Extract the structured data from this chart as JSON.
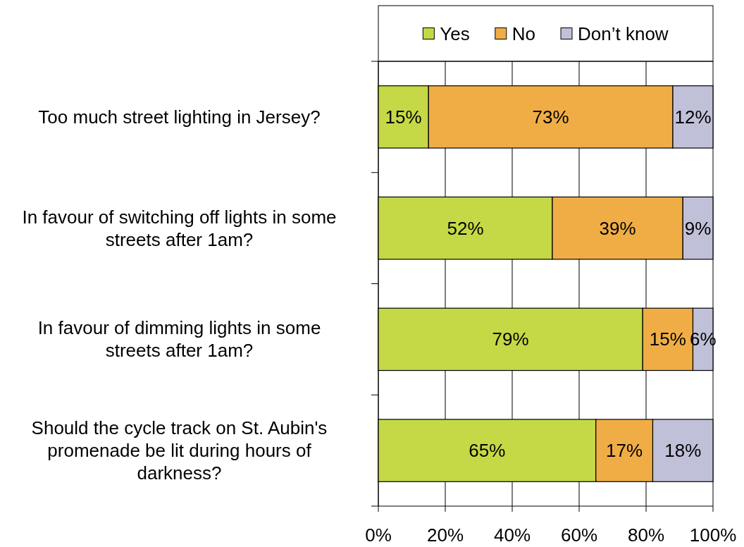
{
  "chart_data": {
    "type": "bar",
    "orientation": "horizontal",
    "stacked": true,
    "grid": "x",
    "legend": "top",
    "categories": [
      "Too much street lighting in Jersey?",
      "In favour of switching off lights in some\nstreets after 1am?",
      "In favour of dimming lights in some\nstreets after 1am?",
      "Should the cycle track on St. Aubin's\npromenade be lit during hours of\ndarkness?"
    ],
    "series": [
      {
        "name": "Yes",
        "color": "#c5d846",
        "values": [
          15,
          52,
          79,
          65
        ],
        "value_labels": [
          "15%",
          "52%",
          "79%",
          "65%"
        ]
      },
      {
        "name": "No",
        "color": "#f0ad46",
        "values": [
          73,
          39,
          15,
          17
        ],
        "value_labels": [
          "73%",
          "39%",
          "15%",
          "17%"
        ]
      },
      {
        "name": "Don’t know",
        "color": "#c0c0d8",
        "values": [
          12,
          9,
          6,
          18
        ],
        "value_labels": [
          "12%",
          "9%",
          "6%",
          "18%"
        ]
      }
    ],
    "xlim": [
      0,
      100
    ],
    "xticks": [
      {
        "value": 0,
        "label": "0%"
      },
      {
        "value": 20,
        "label": "20%"
      },
      {
        "value": 40,
        "label": "40%"
      },
      {
        "value": 60,
        "label": "60%"
      },
      {
        "value": 80,
        "label": "80%"
      },
      {
        "value": 100,
        "label": "100%"
      }
    ]
  }
}
